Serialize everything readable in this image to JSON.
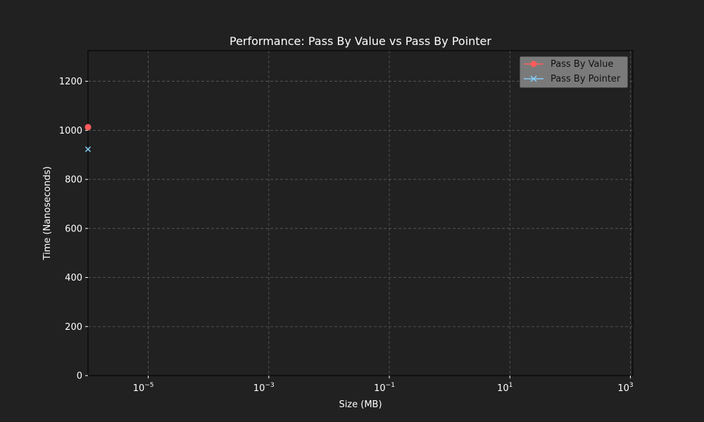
{
  "chart_data": {
    "type": "line",
    "title": "Performance: Pass By Value vs Pass By Pointer",
    "xlabel": "Size (MB)",
    "ylabel": "Time (Nanoseconds)",
    "xscale": "log",
    "xlim": [
      1e-06,
      1100
    ],
    "ylim": [
      0,
      1325
    ],
    "xticks": [
      {
        "base": "10",
        "exp": "−5",
        "value": 1e-05
      },
      {
        "base": "10",
        "exp": "−3",
        "value": 0.001
      },
      {
        "base": "10",
        "exp": "−1",
        "value": 0.1
      },
      {
        "base": "10",
        "exp": "1",
        "value": 10
      },
      {
        "base": "10",
        "exp": "3",
        "value": 1000
      }
    ],
    "yticks": [
      0,
      200,
      400,
      600,
      800,
      1000,
      1200
    ],
    "grid": true,
    "legend_position": "top-right",
    "series": [
      {
        "name": "Pass By Value",
        "color": "#ff5c5c",
        "marker": "circle",
        "x": [
          1e-06
        ],
        "y": [
          1013
        ]
      },
      {
        "name": "Pass By Pointer",
        "color": "#87cefa",
        "marker": "x",
        "x": [
          1e-06
        ],
        "y": [
          923
        ]
      }
    ]
  },
  "colors": {
    "background": "#212121",
    "legend_background": "#7a7a7a"
  }
}
